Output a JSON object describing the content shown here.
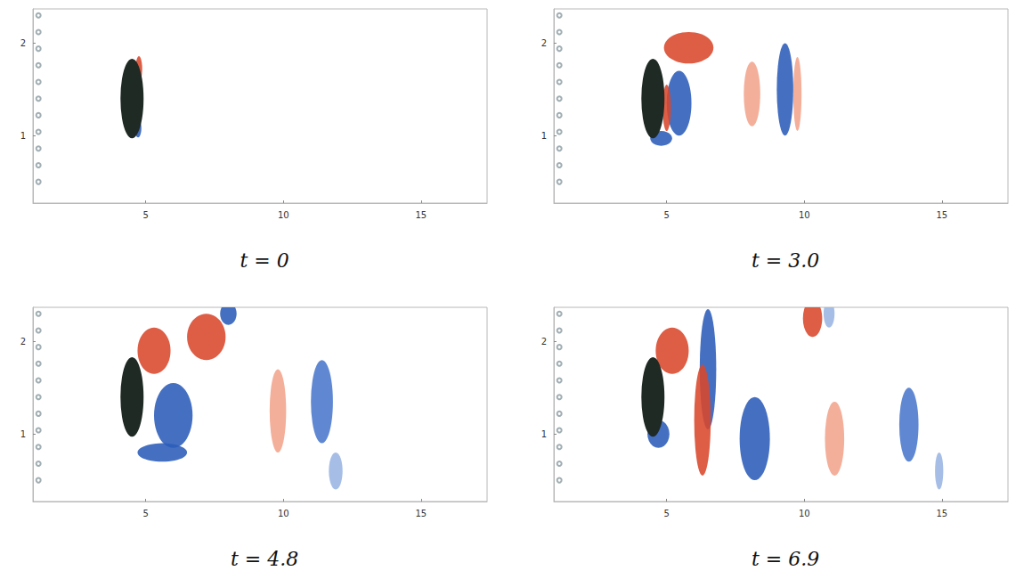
{
  "chart_data": [
    {
      "type": "field",
      "title": "t = 0",
      "xlim": [
        0.9,
        17.4
      ],
      "ylim": [
        0.27,
        2.37
      ],
      "xticks": [
        5,
        10,
        15
      ],
      "yticks": [
        1,
        2
      ],
      "body": {
        "x": 4.5,
        "y": 1.4,
        "rx": 0.42,
        "ry": 0.43,
        "color": "#1f2a24"
      },
      "markers": {
        "x": [
          1.1,
          1.1,
          1.1,
          1.1,
          1.1,
          1.1,
          1.1,
          1.1,
          1.1,
          1.1,
          1.1
        ],
        "y": [
          2.3,
          2.12,
          1.94,
          1.76,
          1.58,
          1.4,
          1.22,
          1.04,
          0.86,
          0.68,
          0.5
        ],
        "color": "#8a9aa0",
        "marker": "emptyCircle"
      },
      "vortices": [
        {
          "x": 4.75,
          "y": 1.72,
          "rx": 0.12,
          "ry": 0.14,
          "color": "#d9472b"
        },
        {
          "x": 4.72,
          "y": 1.08,
          "rx": 0.12,
          "ry": 0.1,
          "color": "#2b5cb8"
        }
      ]
    },
    {
      "type": "field",
      "title": "t = 3.0",
      "xlim": [
        0.9,
        17.4
      ],
      "ylim": [
        0.27,
        2.37
      ],
      "xticks": [
        5,
        10,
        15
      ],
      "yticks": [
        1,
        2
      ],
      "body": {
        "x": 4.5,
        "y": 1.4,
        "rx": 0.42,
        "ry": 0.43,
        "color": "#1f2a24"
      },
      "markers": {
        "x": [
          1.1,
          1.1,
          1.1,
          1.1,
          1.1,
          1.1,
          1.1,
          1.1,
          1.1,
          1.1,
          1.1
        ],
        "y": [
          2.3,
          2.12,
          1.94,
          1.76,
          1.58,
          1.4,
          1.22,
          1.04,
          0.86,
          0.68,
          0.5
        ],
        "color": "#8a9aa0",
        "marker": "emptyCircle"
      },
      "vortices": [
        {
          "x": 5.8,
          "y": 1.95,
          "rx": 0.9,
          "ry": 0.17,
          "color": "#d9472b"
        },
        {
          "x": 5.45,
          "y": 1.35,
          "rx": 0.45,
          "ry": 0.35,
          "color": "#2b5cb8"
        },
        {
          "x": 5.0,
          "y": 1.3,
          "rx": 0.15,
          "ry": 0.25,
          "color": "#d9472b"
        },
        {
          "x": 4.8,
          "y": 0.97,
          "rx": 0.4,
          "ry": 0.08,
          "color": "#2b5cb8"
        },
        {
          "x": 8.1,
          "y": 1.45,
          "rx": 0.3,
          "ry": 0.35,
          "color": "#f2a48c"
        },
        {
          "x": 9.3,
          "y": 1.5,
          "rx": 0.3,
          "ry": 0.5,
          "color": "#2b5cb8"
        },
        {
          "x": 9.75,
          "y": 1.45,
          "rx": 0.15,
          "ry": 0.4,
          "color": "#f2a48c"
        }
      ]
    },
    {
      "type": "field",
      "title": "t = 4.8",
      "xlim": [
        0.9,
        17.4
      ],
      "ylim": [
        0.27,
        2.37
      ],
      "xticks": [
        5,
        10,
        15
      ],
      "yticks": [
        1,
        2
      ],
      "body": {
        "x": 4.5,
        "y": 1.4,
        "rx": 0.42,
        "ry": 0.43,
        "color": "#1f2a24"
      },
      "markers": {
        "x": [
          1.1,
          1.1,
          1.1,
          1.1,
          1.1,
          1.1,
          1.1,
          1.1,
          1.1,
          1.1,
          1.1
        ],
        "y": [
          2.3,
          2.12,
          1.94,
          1.76,
          1.58,
          1.4,
          1.22,
          1.04,
          0.86,
          0.68,
          0.5
        ],
        "color": "#8a9aa0",
        "marker": "emptyCircle"
      },
      "vortices": [
        {
          "x": 6.0,
          "y": 1.2,
          "rx": 0.7,
          "ry": 0.35,
          "color": "#2b5cb8"
        },
        {
          "x": 5.6,
          "y": 0.8,
          "rx": 0.9,
          "ry": 0.1,
          "color": "#2b5cb8"
        },
        {
          "x": 5.3,
          "y": 1.9,
          "rx": 0.6,
          "ry": 0.25,
          "color": "#d9472b"
        },
        {
          "x": 7.2,
          "y": 2.05,
          "rx": 0.7,
          "ry": 0.25,
          "color": "#d9472b"
        },
        {
          "x": 8.0,
          "y": 2.3,
          "rx": 0.3,
          "ry": 0.12,
          "color": "#2b5cb8"
        },
        {
          "x": 9.8,
          "y": 1.25,
          "rx": 0.3,
          "ry": 0.45,
          "color": "#f2a48c"
        },
        {
          "x": 11.4,
          "y": 1.35,
          "rx": 0.4,
          "ry": 0.45,
          "color": "#4a78cc"
        },
        {
          "x": 11.9,
          "y": 0.6,
          "rx": 0.25,
          "ry": 0.2,
          "color": "#9ab5e3"
        }
      ]
    },
    {
      "type": "field",
      "title": "t = 6.9",
      "xlim": [
        0.9,
        17.4
      ],
      "ylim": [
        0.27,
        2.37
      ],
      "xticks": [
        5,
        10,
        15
      ],
      "yticks": [
        1,
        2
      ],
      "body": {
        "x": 4.5,
        "y": 1.4,
        "rx": 0.42,
        "ry": 0.43,
        "color": "#1f2a24"
      },
      "markers": {
        "x": [
          1.1,
          1.1,
          1.1,
          1.1,
          1.1,
          1.1,
          1.1,
          1.1,
          1.1,
          1.1,
          1.1
        ],
        "y": [
          2.3,
          2.12,
          1.94,
          1.76,
          1.58,
          1.4,
          1.22,
          1.04,
          0.86,
          0.68,
          0.5
        ],
        "color": "#8a9aa0",
        "marker": "emptyCircle"
      },
      "vortices": [
        {
          "x": 4.7,
          "y": 1.0,
          "rx": 0.4,
          "ry": 0.15,
          "color": "#2b5cb8"
        },
        {
          "x": 5.2,
          "y": 1.9,
          "rx": 0.6,
          "ry": 0.25,
          "color": "#d9472b"
        },
        {
          "x": 6.5,
          "y": 1.7,
          "rx": 0.3,
          "ry": 0.65,
          "color": "#2b5cb8"
        },
        {
          "x": 6.3,
          "y": 1.15,
          "rx": 0.3,
          "ry": 0.6,
          "color": "#d9472b"
        },
        {
          "x": 8.2,
          "y": 0.95,
          "rx": 0.55,
          "ry": 0.45,
          "color": "#2b5cb8"
        },
        {
          "x": 10.3,
          "y": 2.25,
          "rx": 0.35,
          "ry": 0.2,
          "color": "#d9472b"
        },
        {
          "x": 10.9,
          "y": 2.3,
          "rx": 0.2,
          "ry": 0.15,
          "color": "#9ab5e3"
        },
        {
          "x": 11.1,
          "y": 0.95,
          "rx": 0.35,
          "ry": 0.4,
          "color": "#f2a48c"
        },
        {
          "x": 13.8,
          "y": 1.1,
          "rx": 0.35,
          "ry": 0.4,
          "color": "#4a78cc"
        },
        {
          "x": 14.9,
          "y": 0.6,
          "rx": 0.15,
          "ry": 0.2,
          "color": "#9ab5e3"
        }
      ]
    }
  ]
}
